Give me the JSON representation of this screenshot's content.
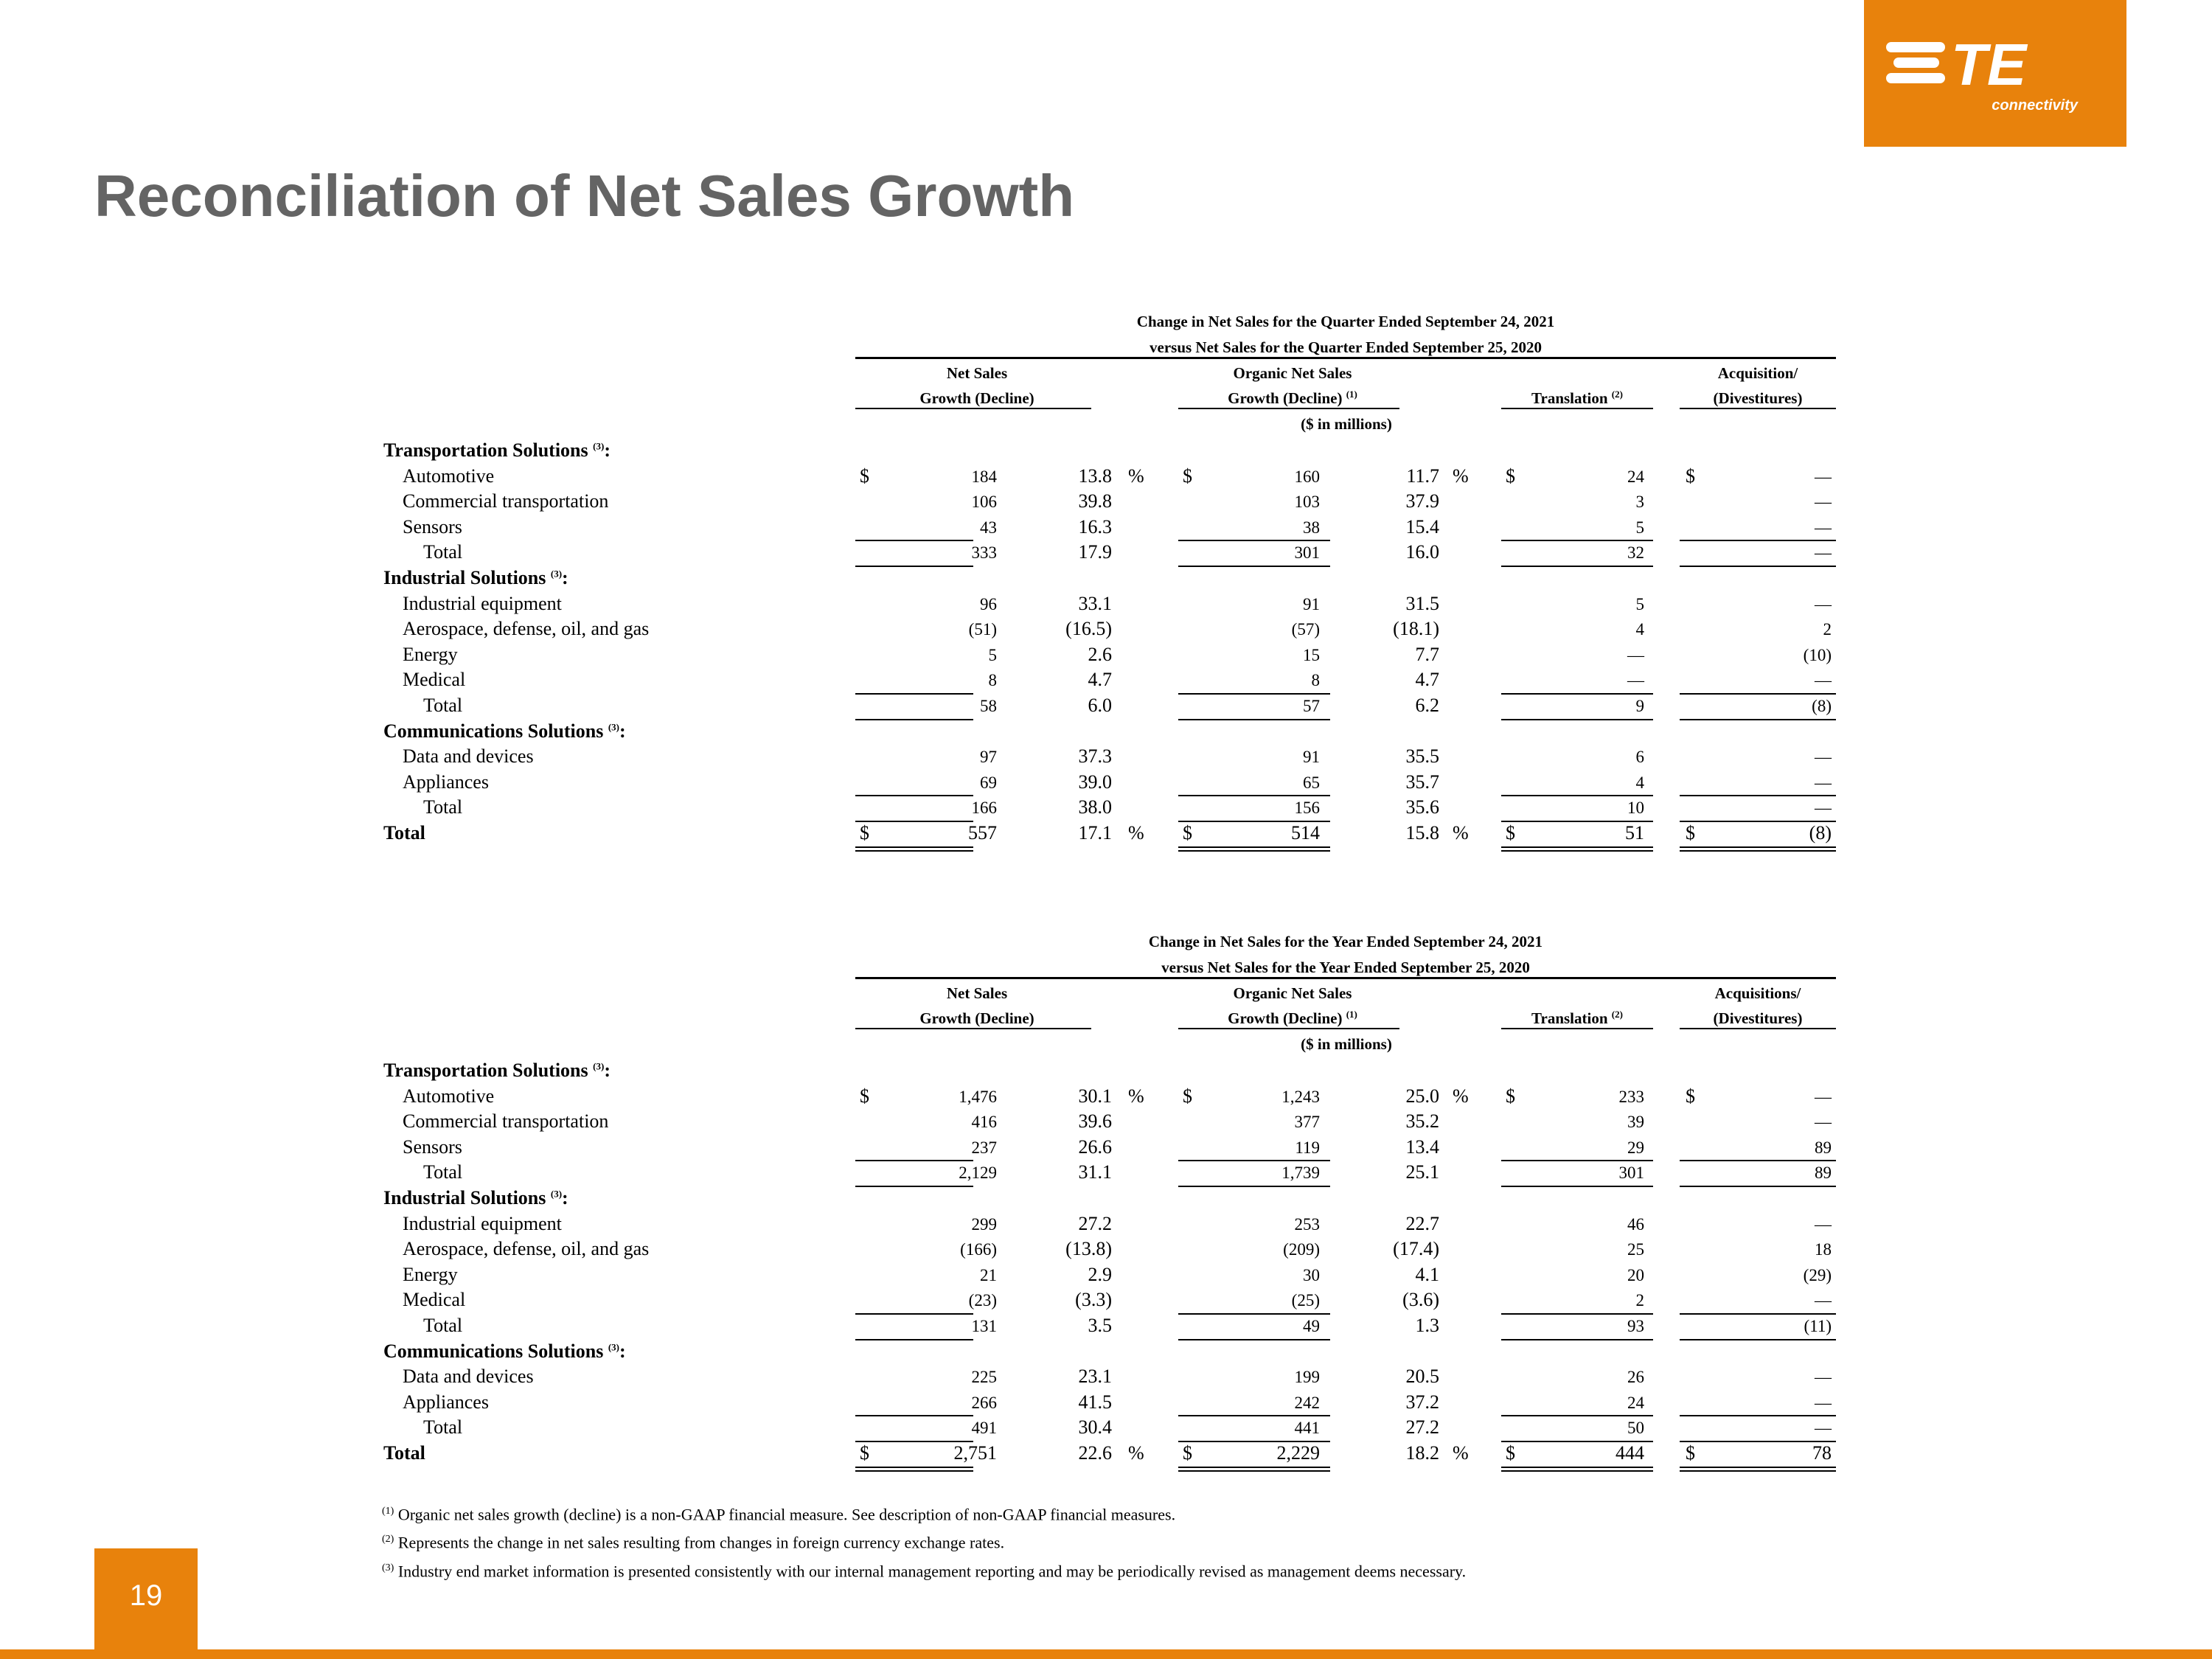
{
  "page": {
    "title": "Reconciliation of Net Sales Growth",
    "page_number": "19",
    "logo": {
      "text": "TE",
      "sub": "connectivity"
    },
    "accent_color": "#e8820c",
    "title_color": "#646464"
  },
  "headers": {
    "net_sales_line1": "Net Sales",
    "net_sales_line2": "Growth (Decline)",
    "organic_line1": "Organic Net Sales",
    "organic_line2": "Growth (Decline)",
    "organic_sup": "(1)",
    "translation": "Translation",
    "translation_sup": "(2)",
    "units": "($ in millions)",
    "section_sup": "(3)"
  },
  "tables": [
    {
      "title_line1": "Change in Net Sales for the Quarter Ended September 24, 2021",
      "title_line2": "versus Net Sales for the Quarter Ended September 25, 2020",
      "acq_line1": "Acquisition/",
      "acq_line2": "(Divestitures)",
      "sections": [
        {
          "name": "Transportation Solutions",
          "rows": [
            {
              "label": "Automotive",
              "ns": "184",
              "nsp": "13.8",
              "org": "160",
              "orgp": "11.7",
              "tr": "24",
              "acq": "—"
            },
            {
              "label": "Commercial transportation",
              "ns": "106",
              "nsp": "39.8",
              "org": "103",
              "orgp": "37.9",
              "tr": "3",
              "acq": "—"
            },
            {
              "label": "Sensors",
              "ns": "43",
              "nsp": "16.3",
              "org": "38",
              "orgp": "15.4",
              "tr": "5",
              "acq": "—"
            }
          ],
          "total": {
            "label": "Total",
            "ns": "333",
            "nsp": "17.9",
            "org": "301",
            "orgp": "16.0",
            "tr": "32",
            "acq": "—"
          }
        },
        {
          "name": "Industrial Solutions",
          "rows": [
            {
              "label": "Industrial equipment",
              "ns": "96",
              "nsp": "33.1",
              "org": "91",
              "orgp": "31.5",
              "tr": "5",
              "acq": "—"
            },
            {
              "label": "Aerospace, defense, oil, and gas",
              "ns": "(51)",
              "nsp": "(16.5)",
              "org": "(57)",
              "orgp": "(18.1)",
              "tr": "4",
              "acq": "2"
            },
            {
              "label": "Energy",
              "ns": "5",
              "nsp": "2.6",
              "org": "15",
              "orgp": "7.7",
              "tr": "—",
              "acq": "(10)"
            },
            {
              "label": "Medical",
              "ns": "8",
              "nsp": "4.7",
              "org": "8",
              "orgp": "4.7",
              "tr": "—",
              "acq": "—"
            }
          ],
          "total": {
            "label": "Total",
            "ns": "58",
            "nsp": "6.0",
            "org": "57",
            "orgp": "6.2",
            "tr": "9",
            "acq": "(8)"
          }
        },
        {
          "name": "Communications Solutions",
          "rows": [
            {
              "label": "Data and devices",
              "ns": "97",
              "nsp": "37.3",
              "org": "91",
              "orgp": "35.5",
              "tr": "6",
              "acq": "—"
            },
            {
              "label": "Appliances",
              "ns": "69",
              "nsp": "39.0",
              "org": "65",
              "orgp": "35.7",
              "tr": "4",
              "acq": "—"
            }
          ],
          "total": {
            "label": "Total",
            "ns": "166",
            "nsp": "38.0",
            "org": "156",
            "orgp": "35.6",
            "tr": "10",
            "acq": "—"
          }
        }
      ],
      "grand_total": {
        "label": "Total",
        "ns": "557",
        "nsp": "17.1",
        "org": "514",
        "orgp": "15.8",
        "tr": "51",
        "acq": "(8)"
      }
    },
    {
      "title_line1": "Change in Net Sales for the Year Ended September 24, 2021",
      "title_line2": "versus Net Sales for the Year Ended September 25, 2020",
      "acq_line1": "Acquisitions/",
      "acq_line2": "(Divestitures)",
      "sections": [
        {
          "name": "Transportation Solutions",
          "rows": [
            {
              "label": "Automotive",
              "ns": "1,476",
              "nsp": "30.1",
              "org": "1,243",
              "orgp": "25.0",
              "tr": "233",
              "acq": "—"
            },
            {
              "label": "Commercial transportation",
              "ns": "416",
              "nsp": "39.6",
              "org": "377",
              "orgp": "35.2",
              "tr": "39",
              "acq": "—"
            },
            {
              "label": "Sensors",
              "ns": "237",
              "nsp": "26.6",
              "org": "119",
              "orgp": "13.4",
              "tr": "29",
              "acq": "89"
            }
          ],
          "total": {
            "label": "Total",
            "ns": "2,129",
            "nsp": "31.1",
            "org": "1,739",
            "orgp": "25.1",
            "tr": "301",
            "acq": "89"
          }
        },
        {
          "name": "Industrial Solutions",
          "rows": [
            {
              "label": "Industrial equipment",
              "ns": "299",
              "nsp": "27.2",
              "org": "253",
              "orgp": "22.7",
              "tr": "46",
              "acq": "—"
            },
            {
              "label": "Aerospace, defense, oil, and gas",
              "ns": "(166)",
              "nsp": "(13.8)",
              "org": "(209)",
              "orgp": "(17.4)",
              "tr": "25",
              "acq": "18"
            },
            {
              "label": "Energy",
              "ns": "21",
              "nsp": "2.9",
              "org": "30",
              "orgp": "4.1",
              "tr": "20",
              "acq": "(29)"
            },
            {
              "label": "Medical",
              "ns": "(23)",
              "nsp": "(3.3)",
              "org": "(25)",
              "orgp": "(3.6)",
              "tr": "2",
              "acq": "—"
            }
          ],
          "total": {
            "label": "Total",
            "ns": "131",
            "nsp": "3.5",
            "org": "49",
            "orgp": "1.3",
            "tr": "93",
            "acq": "(11)"
          }
        },
        {
          "name": "Communications Solutions",
          "rows": [
            {
              "label": "Data and devices",
              "ns": "225",
              "nsp": "23.1",
              "org": "199",
              "orgp": "20.5",
              "tr": "26",
              "acq": "—"
            },
            {
              "label": "Appliances",
              "ns": "266",
              "nsp": "41.5",
              "org": "242",
              "orgp": "37.2",
              "tr": "24",
              "acq": "—"
            }
          ],
          "total": {
            "label": "Total",
            "ns": "491",
            "nsp": "30.4",
            "org": "441",
            "orgp": "27.2",
            "tr": "50",
            "acq": "—"
          }
        }
      ],
      "grand_total": {
        "label": "Total",
        "ns": "2,751",
        "nsp": "22.6",
        "org": "2,229",
        "orgp": "18.2",
        "tr": "444",
        "acq": "78"
      }
    }
  ],
  "symbols": {
    "currency": "$",
    "percent": "%"
  },
  "footnotes": [
    {
      "mark": "(1)",
      "text": "Organic net sales growth (decline) is a non-GAAP financial measure. See description of non-GAAP financial measures."
    },
    {
      "mark": "(2)",
      "text": "Represents the change in net sales resulting from changes in foreign currency exchange rates."
    },
    {
      "mark": "(3)",
      "text": "Industry end market information is presented consistently with our internal management reporting and may be periodically revised as management deems necessary."
    }
  ]
}
